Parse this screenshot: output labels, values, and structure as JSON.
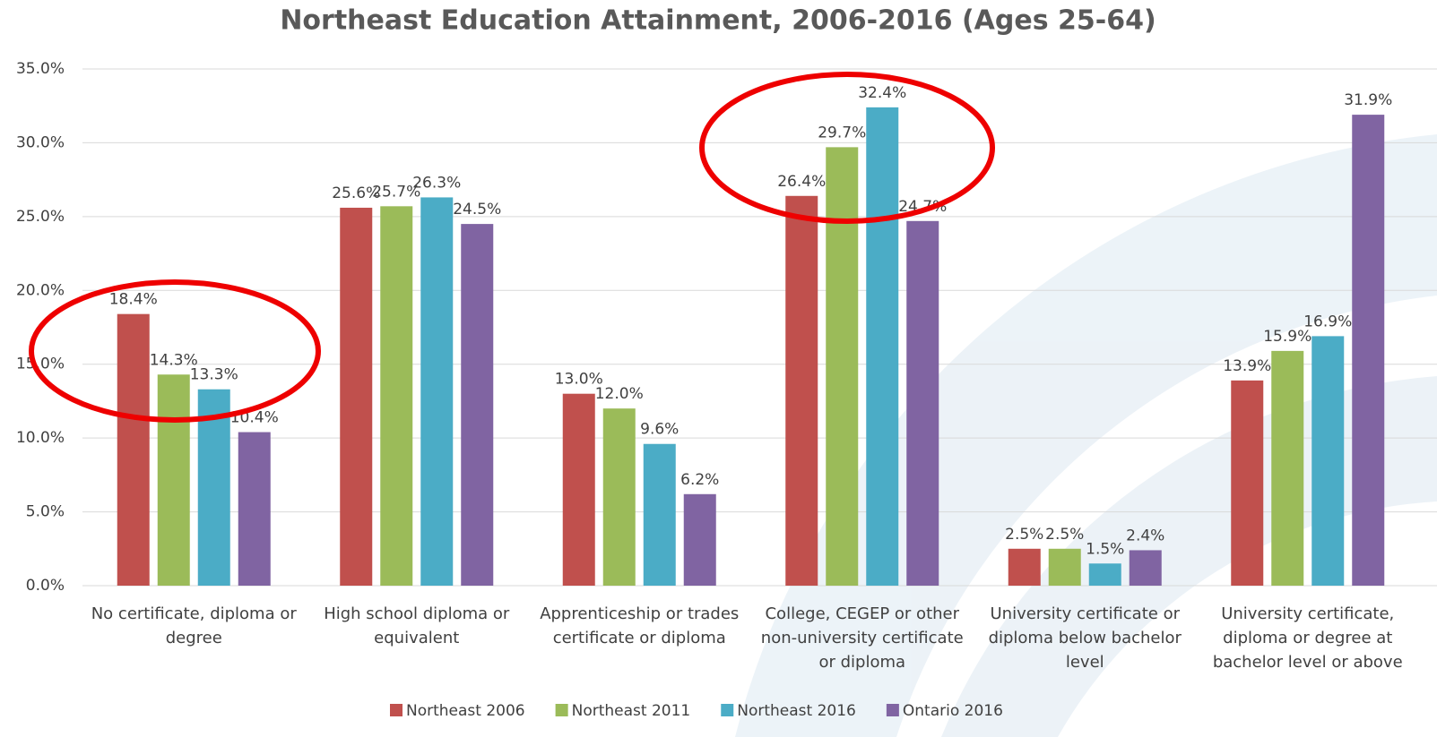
{
  "chart_data": {
    "type": "bar",
    "title": "Northeast Education Attainment, 2006-2016 (Ages 25-64)",
    "categories": [
      "No certificate, diploma or degree",
      "High school diploma or equivalent",
      "Apprenticeship or trades certificate or diploma",
      "College, CEGEP or other non-university certificate or diploma",
      "University certificate or diploma below bachelor level",
      "University certificate, diploma or degree at bachelor level or above"
    ],
    "series": [
      {
        "name": "Northeast 2006",
        "color": "#c0504d",
        "values": [
          18.4,
          25.6,
          13.0,
          26.4,
          2.5,
          13.9
        ],
        "value_labels": [
          "18.4%",
          "25.6%",
          "13.0%",
          "26.4%",
          "2.5%",
          "13.9%"
        ]
      },
      {
        "name": "Northeast 2011",
        "color": "#9bbb59",
        "values": [
          14.3,
          25.7,
          12.0,
          29.7,
          2.5,
          15.9
        ],
        "value_labels": [
          "14.3%",
          "25.7%",
          "12.0%",
          "29.7%",
          "2.5%",
          "15.9%"
        ]
      },
      {
        "name": "Northeast 2016",
        "color": "#4bacc6",
        "values": [
          13.3,
          26.3,
          9.6,
          32.4,
          1.5,
          16.9
        ],
        "value_labels": [
          "13.3%",
          "26.3%",
          "9.6%",
          "32.4%",
          "1.5%",
          "16.9%"
        ]
      },
      {
        "name": "Ontario 2016",
        "color": "#8064a2",
        "values": [
          10.4,
          24.5,
          6.2,
          24.7,
          2.4,
          31.9
        ],
        "value_labels": [
          "10.4%",
          "24.5%",
          "6.2%",
          "24.7%",
          "2.4%",
          "31.9%"
        ]
      }
    ],
    "ylim": [
      0,
      35
    ],
    "yticks": [
      {
        "value": 0,
        "label": "0.0%"
      },
      {
        "value": 5,
        "label": "5.0%"
      },
      {
        "value": 10,
        "label": "10.0%"
      },
      {
        "value": 15,
        "label": "15.0%"
      },
      {
        "value": 20,
        "label": "20.0%"
      },
      {
        "value": 25,
        "label": "25.0%"
      },
      {
        "value": 30,
        "label": "30.0%"
      },
      {
        "value": 35,
        "label": "35.0%"
      }
    ],
    "grid": true,
    "legend": "bottom"
  }
}
